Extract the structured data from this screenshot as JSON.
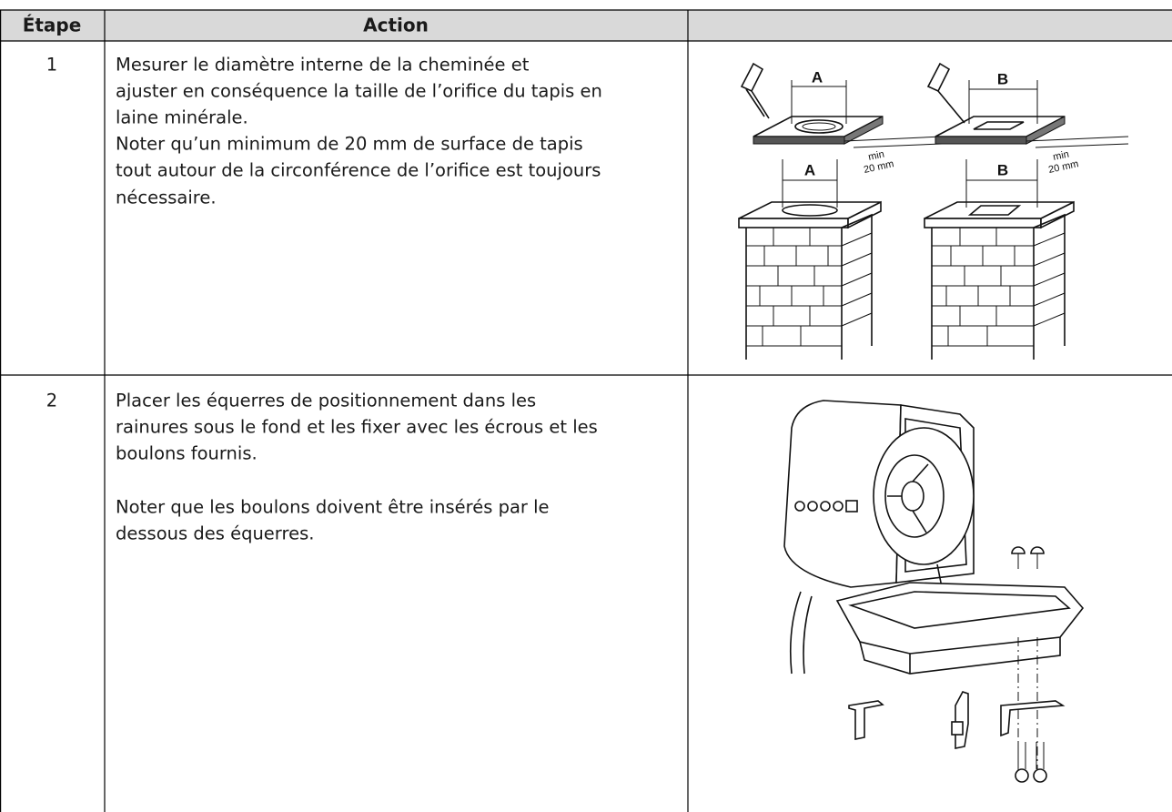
{
  "table": {
    "headers": [
      "Étape",
      "Action"
    ],
    "rows": [
      {
        "step": "1",
        "paragraphs": [
          [
            "Mesurer le diamètre interne de la cheminée et",
            "ajuster en conséquence la taille de l’orifice du tapis en",
            "laine minérale."
          ],
          [
            "Noter qu’un minimum de 20 mm de surface de tapis",
            "tout autour de la circonférence de l’orifice est toujours",
            "nécessaire."
          ]
        ],
        "figure_labels": [
          "A",
          "B",
          "min",
          "20 mm"
        ]
      },
      {
        "step": "2",
        "paragraphs": [
          [
            "Placer les équerres de positionnement dans les",
            "rainures sous le fond et les fixer avec les écrous et les",
            "boulons fournis."
          ],
          [
            "Noter que les boulons doivent être insérés par le",
            "dessous des équerres."
          ]
        ]
      }
    ]
  }
}
